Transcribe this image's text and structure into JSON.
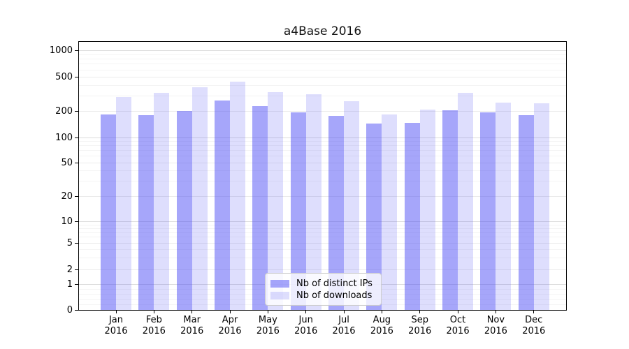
{
  "chart_data": {
    "type": "bar",
    "title": "a4Base 2016",
    "categories": [
      "Jan 2016",
      "Feb 2016",
      "Mar 2016",
      "Apr 2016",
      "May 2016",
      "Jun 2016",
      "Jul 2016",
      "Aug 2016",
      "Sep 2016",
      "Oct 2016",
      "Nov 2016",
      "Dec 2016"
    ],
    "series": [
      {
        "name": "Nb of distinct IPs",
        "color": "rgba(70,70,245,0.48)",
        "values": [
          185,
          181,
          202,
          265,
          228,
          195,
          177,
          145,
          148,
          204,
          196,
          180
        ]
      },
      {
        "name": "Nb of downloads",
        "color": "rgba(70,70,245,0.18)",
        "values": [
          295,
          325,
          380,
          440,
          335,
          312,
          260,
          184,
          210,
          325,
          253,
          248
        ]
      }
    ],
    "xlabel": "",
    "ylabel": "",
    "yscale": "symlog",
    "ytick_values": [
      0,
      1,
      2,
      5,
      10,
      20,
      50,
      100,
      200,
      500,
      1000
    ],
    "ytick_labels": [
      "0",
      "1",
      "2",
      "5",
      "10",
      "20",
      "50",
      "100",
      "200",
      "500",
      "1000"
    ],
    "ylim": [
      0,
      1300
    ],
    "grid": "both",
    "legend_position": "lower-center"
  }
}
